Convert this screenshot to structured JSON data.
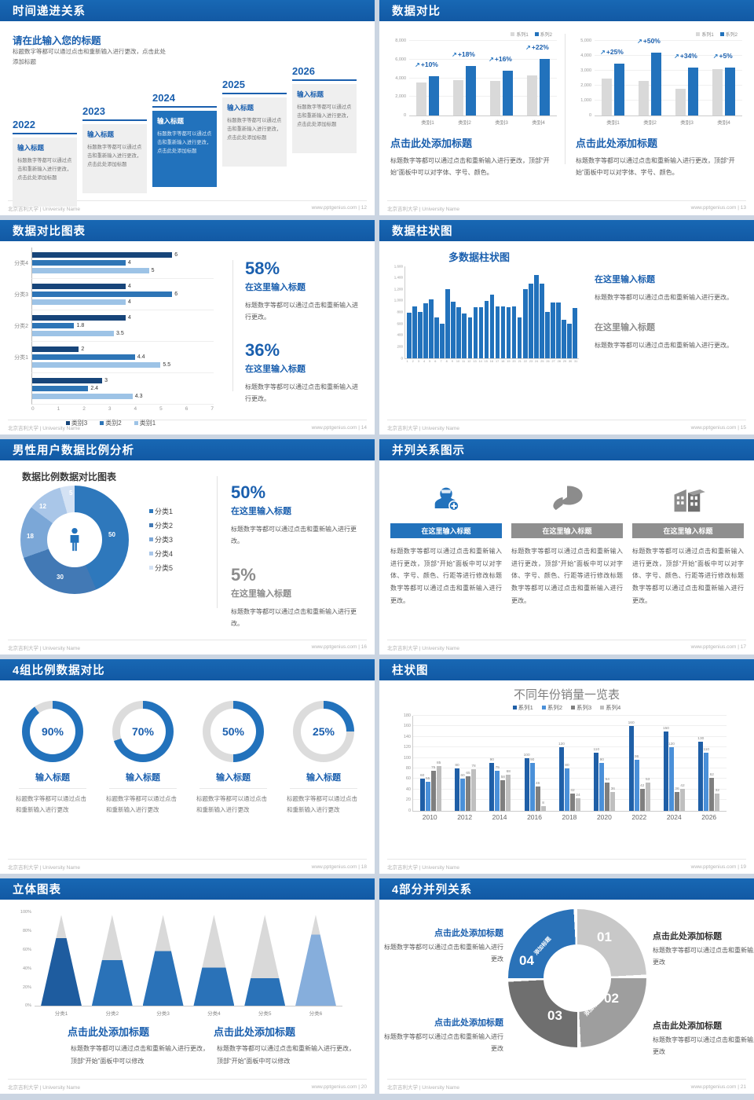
{
  "footer": {
    "university": "北京吉利大学 | University Name",
    "site": "www.pptgenius.com"
  },
  "boiler": {
    "short": "标题数字等都可以通过点击和重新输入进行更改",
    "dot": "标题数字等都可以通过点击和重新输入进行更改。",
    "add_title": "标题数字等都可以通过点击和重新输入进行更改，点击此处添加标题",
    "panel_font": "标题数字等都可以通过点击和重新输入进行更改，顶部“开始”面板中可以对字体、字号、颜色。",
    "panel_long": "标题数字等都可以通过点击和重新输入进行更改，顶部“开始”面板中可以对字体、字号、颜色、行距等进行修改标题数字等都可以通过点击和重新输入进行更改。",
    "panel_modify": "标题数字等都可以通过点击和重新输入进行更改，顶部“开始”面板中可以修改"
  },
  "slides": {
    "s12": {
      "page": "12",
      "title": "时间递进关系",
      "heading": "请在此输入您的标题",
      "intro": "标题数字等都可以通过点击和重新输入进行更改，点击此处添加标题",
      "items": [
        {
          "year": "2022",
          "box_title": "输入标题",
          "body": "标题数字等都可以通过点击和重新输入进行更改，点击此处添加标题",
          "highlight": false
        },
        {
          "year": "2023",
          "box_title": "输入标题",
          "body": "标题数字等都可以通过点击和重新输入进行更改，点击此处添加标题",
          "highlight": false
        },
        {
          "year": "2024",
          "box_title": "输入标题",
          "body": "标题数字等都可以通过点击和重新输入进行更改，点击此处添加标题",
          "highlight": true
        },
        {
          "year": "2025",
          "box_title": "输入标题",
          "body": "标题数字等都可以通过点击和重新输入进行更改，点击此处添加标题",
          "highlight": false
        },
        {
          "year": "2026",
          "box_title": "输入标题",
          "body": "标题数字等都可以通过点击和重新输入进行更改，点击此处添加标题",
          "highlight": false
        }
      ]
    },
    "s13": {
      "page": "13",
      "title": "数据对比",
      "legend": [
        "系列1",
        "系列2"
      ],
      "charts": [
        {
          "type": "bar",
          "ymax": 8000,
          "yticks": [
            "8,000",
            "6,000",
            "4,000",
            "2,000",
            "0"
          ],
          "categories": [
            "类别1",
            "类别2",
            "类别3",
            "类别4"
          ],
          "series1": [
            3500,
            3800,
            3700,
            4300
          ],
          "series2": [
            4200,
            5300,
            4800,
            6100
          ],
          "growth": [
            "+10%",
            "+18%",
            "+16%",
            "+22%"
          ],
          "heading": "点击此处添加标题",
          "body": "标题数字等都可以通过点击和重新输入进行更改，顶部“开始”面板中可以对字体、字号、颜色。"
        },
        {
          "type": "bar",
          "ymax": 5000,
          "yticks": [
            "5,000",
            "4,000",
            "3,000",
            "2,000",
            "1,000",
            "0"
          ],
          "categories": [
            "类别1",
            "类别2",
            "类别3",
            "类别4"
          ],
          "series1": [
            2500,
            2300,
            1800,
            3100
          ],
          "series2": [
            3500,
            4200,
            3200,
            3200
          ],
          "growth": [
            "+25%",
            "+50%",
            "+34%",
            "+5%"
          ],
          "heading": "点击此处添加标题",
          "body": "标题数字等都可以通过点击和重新输入进行更改，顶部“开始”面板中可以对字体、字号、颜色。"
        }
      ]
    },
    "s14": {
      "page": "14",
      "title": "数据对比图表",
      "type": "bar-horizontal",
      "xmax": 7,
      "xticks": [
        "0",
        "1",
        "2",
        "3",
        "4",
        "5",
        "6",
        "7"
      ],
      "legend": [
        "类别3",
        "类别2",
        "类别1"
      ],
      "colors": [
        "#17457a",
        "#2e75b6",
        "#9dc3e6"
      ],
      "groups": [
        {
          "label": "分类4",
          "values": [
            6,
            4,
            5
          ]
        },
        {
          "label": "分类3",
          "values": [
            4,
            6,
            4
          ]
        },
        {
          "label": "分类2",
          "values": [
            4,
            1.8,
            3.5
          ]
        },
        {
          "label": "分类1",
          "values": [
            2,
            4.4,
            5.5
          ]
        },
        {
          "label": "",
          "values": [
            3,
            2.4,
            4.3
          ]
        }
      ],
      "stats": [
        {
          "pct": "58%",
          "heading": "在这里输入标题",
          "body": "标题数字等都可以通过点击和重新输入进行更改。",
          "accent": true
        },
        {
          "pct": "36%",
          "heading": "在这里输入标题",
          "body": "标题数字等都可以通过点击和重新输入进行更改。",
          "accent": true
        }
      ]
    },
    "s15": {
      "page": "15",
      "title": "数据柱状图",
      "chart_title": "多数据柱状图",
      "type": "bar",
      "ymax": 1600,
      "yticks": [
        "1,600",
        "1,400",
        "1,200",
        "1,000",
        "800",
        "600",
        "400",
        "200",
        "0"
      ],
      "values": [
        790,
        900,
        800,
        950,
        1020,
        700,
        600,
        1200,
        980,
        890,
        780,
        700,
        890,
        890,
        990,
        1100,
        900,
        900,
        880,
        900,
        700,
        1200,
        1300,
        1450,
        1300,
        800,
        960,
        960,
        660,
        600,
        870
      ],
      "stats": [
        {
          "heading": "在这里输入标题",
          "body": "标题数字等都可以通过点击和重新输入进行更改。",
          "accent": true
        },
        {
          "heading": "在这里输入标题",
          "body": "标题数字等都可以通过点击和重新输入进行更改。",
          "accent": false
        }
      ]
    },
    "s16": {
      "page": "16",
      "title": "男性用户数据比例分析",
      "chart_title": "数据比例数据对比图表",
      "type": "pie",
      "values": [
        50,
        30,
        18,
        12,
        5
      ],
      "labels": [
        "50",
        "30",
        "18",
        "12",
        "5"
      ],
      "colors": [
        "#2e78bc",
        "#4279b5",
        "#7ba7d7",
        "#a9c6e8",
        "#d4e2f4"
      ],
      "legend": [
        "分类1",
        "分类2",
        "分类3",
        "分类4",
        "分类5"
      ],
      "stats": [
        {
          "pct": "50%",
          "heading": "在这里输入标题",
          "body": "标题数字等都可以通过点击和重新输入进行更改。",
          "accent": true
        },
        {
          "pct": "5%",
          "heading": "在这里输入标题",
          "body": "标题数字等都可以通过点击和重新输入进行更改。",
          "accent": false
        }
      ]
    },
    "s17": {
      "page": "17",
      "title": "并列关系图示",
      "cols": [
        {
          "icon": "nurse-icon",
          "heading": "在这里输入标题",
          "body": "标题数字等都可以通过点击和重新输入进行更改，顶部“开始”面板中可以对字体、字号、颜色、行距等进行修改标题数字等都可以通过点击和重新输入进行更改。",
          "accent": true
        },
        {
          "icon": "pie-chart-3d-icon",
          "heading": "在这里输入标题",
          "body": "标题数字等都可以通过点击和重新输入进行更改，顶部“开始”面板中可以对字体、字号、颜色、行距等进行修改标题数字等都可以通过点击和重新输入进行更改。",
          "accent": false
        },
        {
          "icon": "building-icon",
          "heading": "在这里输入标题",
          "body": "标题数字等都可以通过点击和重新输入进行更改，顶部“开始”面板中可以对字体、字号、颜色、行距等进行修改标题数字等都可以通过点击和重新输入进行更改。",
          "accent": false
        }
      ]
    },
    "s18": {
      "page": "18",
      "title": "4组比例数据对比",
      "type": "donut-progress",
      "items": [
        {
          "pct": 90,
          "label": "90%",
          "heading": "输入标题",
          "body": "标题数字等都可以通过点击和重新输入进行更改"
        },
        {
          "pct": 70,
          "label": "70%",
          "heading": "输入标题",
          "body": "标题数字等都可以通过点击和重新输入进行更改"
        },
        {
          "pct": 50,
          "label": "50%",
          "heading": "输入标题",
          "body": "标题数字等都可以通过点击和重新输入进行更改"
        },
        {
          "pct": 25,
          "label": "25%",
          "heading": "输入标题",
          "body": "标题数字等都可以通过点击和重新输入进行更改"
        }
      ]
    },
    "s19": {
      "page": "19",
      "title": "柱状图",
      "chart_title": "不同年份销量一览表",
      "type": "bar",
      "ymax": 180,
      "yticks": [
        "180",
        "160",
        "140",
        "120",
        "100",
        "80",
        "60",
        "40",
        "20",
        "0"
      ],
      "categories": [
        "2010",
        "2012",
        "2014",
        "2016",
        "2018",
        "2020",
        "2022",
        "2024",
        "2026"
      ],
      "series": [
        {
          "name": "系列1",
          "color": "#1f5fa7",
          "values": [
            60,
            80,
            90,
            100,
            120,
            110,
            160,
            150,
            130
          ]
        },
        {
          "name": "系列2",
          "color": "#4a90d9",
          "values": [
            55,
            60,
            75,
            90,
            80,
            90,
            96,
            120,
            110
          ]
        },
        {
          "name": "系列3",
          "color": "#7f7f7f",
          "values": [
            75,
            65,
            58,
            46,
            32,
            54,
            42,
            36,
            62
          ]
        },
        {
          "name": "系列4",
          "color": "#bfbfbf",
          "values": [
            85,
            78,
            68,
            8,
            24,
            36,
            53,
            42,
            32
          ]
        }
      ]
    },
    "s20": {
      "page": "20",
      "title": "立体图表",
      "type": "cone",
      "yticks": [
        "100%",
        "80%",
        "60%",
        "40%",
        "20%",
        "0%"
      ],
      "cones": [
        {
          "label": "分类1",
          "fill": 74,
          "color": "#1e5c9f"
        },
        {
          "label": "分类2",
          "fill": 50,
          "color": "#2a72b8"
        },
        {
          "label": "分类3",
          "fill": 60,
          "color": "#2a72b8"
        },
        {
          "label": "分类4",
          "fill": 42,
          "color": "#2a72b8"
        },
        {
          "label": "分类5",
          "fill": 30,
          "color": "#2a72b8"
        },
        {
          "label": "分类6",
          "fill": 78,
          "color": "#86aedc"
        }
      ],
      "captions": [
        {
          "heading": "点击此处添加标题",
          "body": "标题数字等都可以通过点击和重新输入进行更改，顶部“开始”面板中可以修改"
        },
        {
          "heading": "点击此处添加标题",
          "body": "标题数字等都可以通过点击和重新输入进行更改，顶部“开始”面板中可以修改"
        }
      ]
    },
    "s21": {
      "page": "21",
      "title": "4部分并列关系",
      "segments": [
        {
          "num": "01",
          "label": "添加标题",
          "color": "#c8c8c8"
        },
        {
          "num": "02",
          "label": "添加标题",
          "color": "#9e9e9e"
        },
        {
          "num": "03",
          "label": "添加标题",
          "color": "#6f6f6f"
        },
        {
          "num": "04",
          "label": "添加标题",
          "color": "#2a72b8"
        }
      ],
      "blocks": [
        {
          "heading": "点击此处添加标题",
          "body": "标题数字等都可以通过点击和重新输入进行更改",
          "accent": true,
          "side": "left"
        },
        {
          "heading": "点击此处添加标题",
          "body": "标题数字等都可以通过点击和重新输入进行更改",
          "accent": false,
          "side": "right"
        },
        {
          "heading": "点击此处添加标题",
          "body": "标题数字等都可以通过点击和重新输入进行更改",
          "accent": true,
          "side": "left"
        },
        {
          "heading": "点击此处添加标题",
          "body": "标题数字等都可以通过点击和重新输入进行更改",
          "accent": false,
          "side": "right"
        }
      ]
    }
  }
}
